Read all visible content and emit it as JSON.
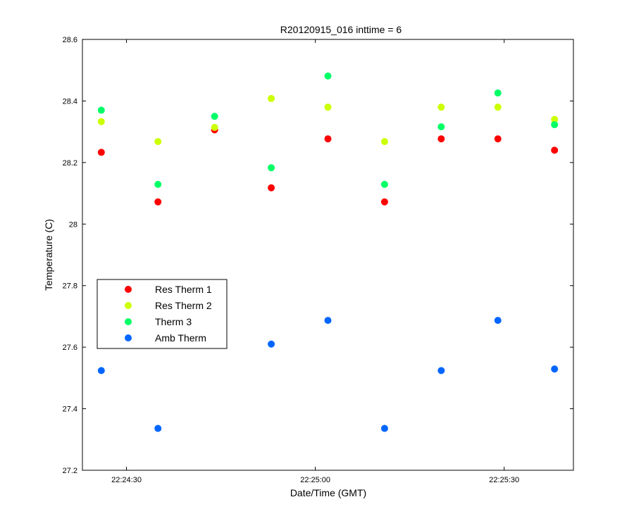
{
  "chart_data": {
    "type": "scatter",
    "title": "R20120915_016 inttime = 6",
    "xlabel": "Date/Time (GMT)",
    "ylabel": "Temperature (C)",
    "xlim": [
      "22:24:23",
      "22:25:41"
    ],
    "ylim": [
      27.2,
      28.6
    ],
    "x_ticks": [
      "22:24:30",
      "22:25:00",
      "22:25:30"
    ],
    "y_ticks": [
      "27.2",
      "27.4",
      "27.6",
      "27.8",
      "28",
      "28.2",
      "28.4",
      "28.6"
    ],
    "legend_position": "center-left",
    "x": [
      "22:24:26",
      "22:24:35",
      "22:24:44",
      "22:24:53",
      "22:25:02",
      "22:25:11",
      "22:25:20",
      "22:25:29",
      "22:25:38"
    ],
    "series": [
      {
        "name": "Res Therm 1",
        "color": "#ff0000",
        "values": [
          28.233,
          28.072,
          28.306,
          28.118,
          28.277,
          28.072,
          28.277,
          28.277,
          28.24
        ]
      },
      {
        "name": "Res Therm 2",
        "color": "#ccff00",
        "values": [
          28.333,
          28.268,
          28.314,
          28.408,
          28.38,
          28.268,
          28.38,
          28.38,
          28.34
        ]
      },
      {
        "name": "Therm 3",
        "color": "#00ff66",
        "values": [
          28.37,
          28.129,
          28.35,
          28.183,
          28.481,
          28.129,
          28.316,
          28.426,
          28.323
        ]
      },
      {
        "name": "Amb Therm",
        "color": "#0066ff",
        "values": [
          27.524,
          27.336,
          null,
          27.61,
          27.687,
          27.336,
          27.524,
          27.687,
          27.529
        ]
      }
    ]
  }
}
